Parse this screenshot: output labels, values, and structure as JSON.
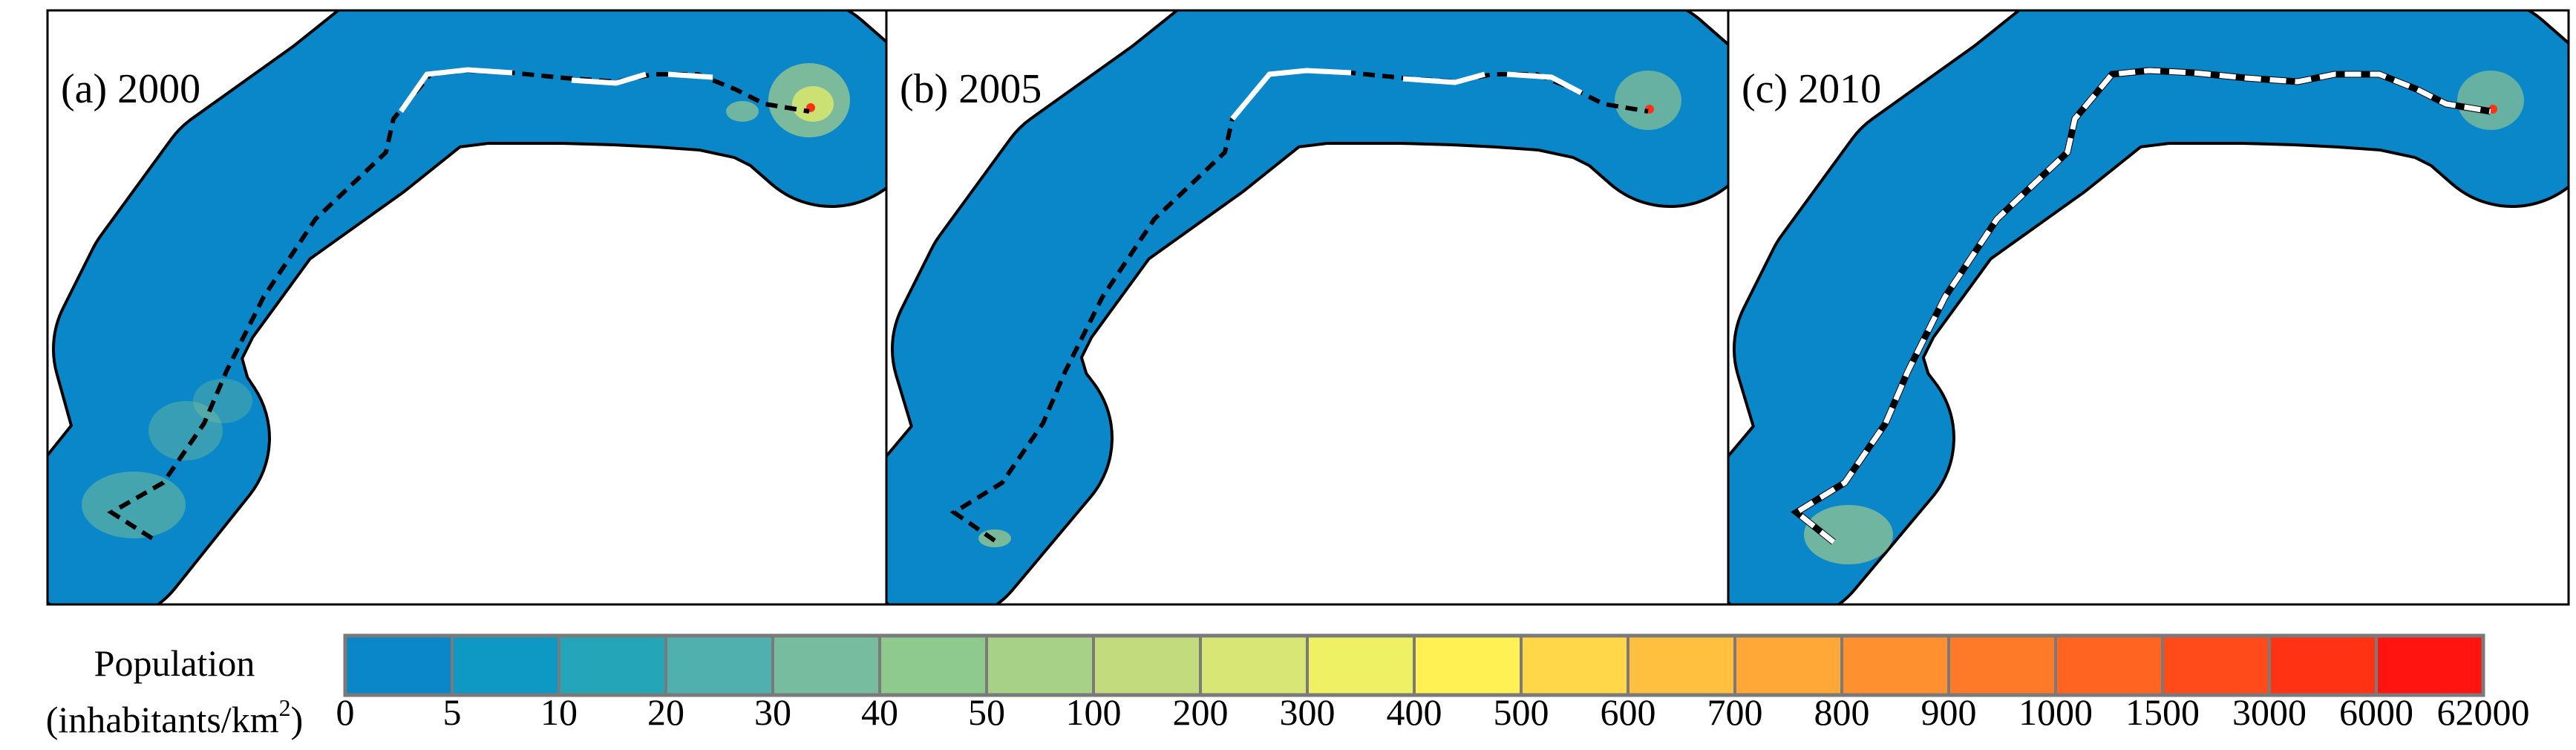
{
  "panels": [
    {
      "label": "(a) 2000",
      "year": 2000,
      "road_style": "mostly-dashed-black"
    },
    {
      "label": "(b) 2005",
      "year": 2005,
      "road_style": "mostly-dashed-black"
    },
    {
      "label": "(c) 2010",
      "year": 2010,
      "road_style": "mostly-white-with-black-dashes"
    }
  ],
  "legend": {
    "title_line1": "Population",
    "title_line2_prefix": "(inhabitants/km",
    "title_superscript": "2",
    "title_line2_suffix": ")",
    "colors": [
      "#0a87c9",
      "#0e98c4",
      "#25a6b8",
      "#4fb0ad",
      "#77bc9e",
      "#8ec98d",
      "#a6d187",
      "#c2db7c",
      "#d8e676",
      "#eef163",
      "#fff054",
      "#ffd748",
      "#ffbf3f",
      "#ffa837",
      "#ff9030",
      "#ff7a28",
      "#ff6520",
      "#ff4a1a",
      "#ff3314",
      "#ff1410"
    ],
    "ticks": [
      "0",
      "5",
      "10",
      "20",
      "30",
      "40",
      "50",
      "100",
      "200",
      "300",
      "400",
      "500",
      "600",
      "700",
      "800",
      "900",
      "1000",
      "1500",
      "3000",
      "6000",
      "62000"
    ]
  },
  "colors": {
    "buffer_fill": "#0a87c9",
    "road_main": "#000000",
    "road_alt": "#ffffff",
    "frame": "#000000"
  }
}
